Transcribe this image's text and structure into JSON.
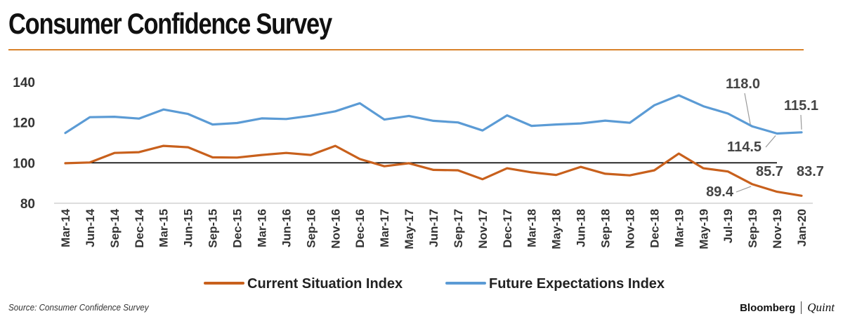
{
  "title": "Consumer Confidence Survey",
  "source": "Source: Consumer Confidence Survey",
  "brand": {
    "primary": "Bloomberg",
    "secondary": "Quint"
  },
  "colors": {
    "accent": "#d9822b",
    "current": "#c8601c",
    "future": "#5b9bd5",
    "reference": "#000000"
  },
  "chart_data": {
    "type": "line",
    "x": [
      "Mar-14",
      "Jun-14",
      "Sep-14",
      "Dec-14",
      "Mar-15",
      "Jun-15",
      "Sep-15",
      "Dec-15",
      "Mar-16",
      "Jun-16",
      "Sep-16",
      "Nov-16",
      "Dec-16",
      "Mar-17",
      "May-17",
      "Jun-17",
      "Sep-17",
      "Nov-17",
      "Dec-17",
      "Mar-18",
      "May-18",
      "Jun-18",
      "Sep-18",
      "Nov-18",
      "Dec-18",
      "Mar-19",
      "May-19",
      "Jul-19",
      "Sep-19",
      "Nov-19",
      "Jan-20"
    ],
    "ylim": [
      80,
      140
    ],
    "yticks": [
      80,
      100,
      120,
      140
    ],
    "reference_line": 100,
    "legend_position": "bottom",
    "series": [
      {
        "name": "Current Situation Index",
        "values": [
          99.8,
          100.2,
          104.9,
          105.3,
          108.4,
          107.7,
          102.7,
          102.6,
          103.9,
          104.9,
          103.9,
          108.4,
          101.9,
          98.3,
          99.8,
          96.5,
          96.3,
          91.9,
          97.3,
          95.3,
          94.0,
          98.0,
          94.6,
          93.8,
          96.3,
          104.6,
          97.3,
          95.7,
          89.4,
          85.7,
          83.7
        ]
      },
      {
        "name": "Future Expectations Index",
        "values": [
          114.8,
          122.6,
          122.8,
          121.9,
          126.4,
          124.2,
          119.0,
          119.7,
          122.0,
          121.7,
          123.3,
          125.5,
          129.5,
          121.4,
          123.2,
          120.8,
          120.0,
          116.0,
          123.5,
          118.3,
          119.0,
          119.5,
          120.9,
          119.8,
          128.5,
          133.4,
          128.0,
          124.4,
          118.0,
          114.5,
          115.1
        ]
      }
    ],
    "annotations": [
      "118.0",
      "115.1",
      "114.5",
      "89.4",
      "85.7",
      "83.7"
    ]
  }
}
